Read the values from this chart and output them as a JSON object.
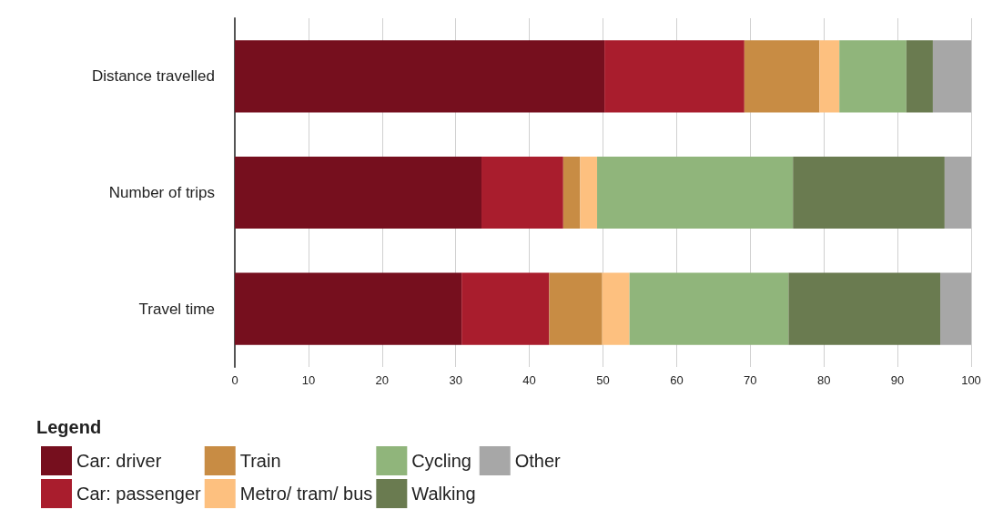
{
  "chart_data": {
    "type": "bar",
    "orientation": "horizontal",
    "stacked": true,
    "categories": [
      "Distance travelled",
      "Number of trips",
      "Travel time"
    ],
    "series": [
      {
        "name": "Car: driver",
        "color": "#760f1e",
        "values": [
          50.2,
          33.5,
          30.8
        ]
      },
      {
        "name": "Car: passenger",
        "color": "#a91d2d",
        "values": [
          19.0,
          11.1,
          11.9
        ]
      },
      {
        "name": "Train",
        "color": "#c88c44",
        "values": [
          10.2,
          2.3,
          7.2
        ]
      },
      {
        "name": "Metro/ tram/ bus",
        "color": "#fdc07f",
        "values": [
          2.7,
          2.3,
          3.7
        ]
      },
      {
        "name": "Cycling",
        "color": "#90b57b",
        "values": [
          9.1,
          26.6,
          21.6
        ]
      },
      {
        "name": "Walking",
        "color": "#6a7b50",
        "values": [
          3.6,
          20.6,
          20.6
        ]
      },
      {
        "name": "Other",
        "color": "#a7a7a7",
        "values": [
          5.2,
          3.6,
          4.2
        ]
      }
    ],
    "xlim": [
      0,
      100
    ],
    "xticks": [
      0,
      10,
      20,
      30,
      40,
      50,
      60,
      70,
      80,
      90,
      100
    ],
    "grid": "x",
    "legend": "bottom",
    "legend_title": "Legend"
  }
}
